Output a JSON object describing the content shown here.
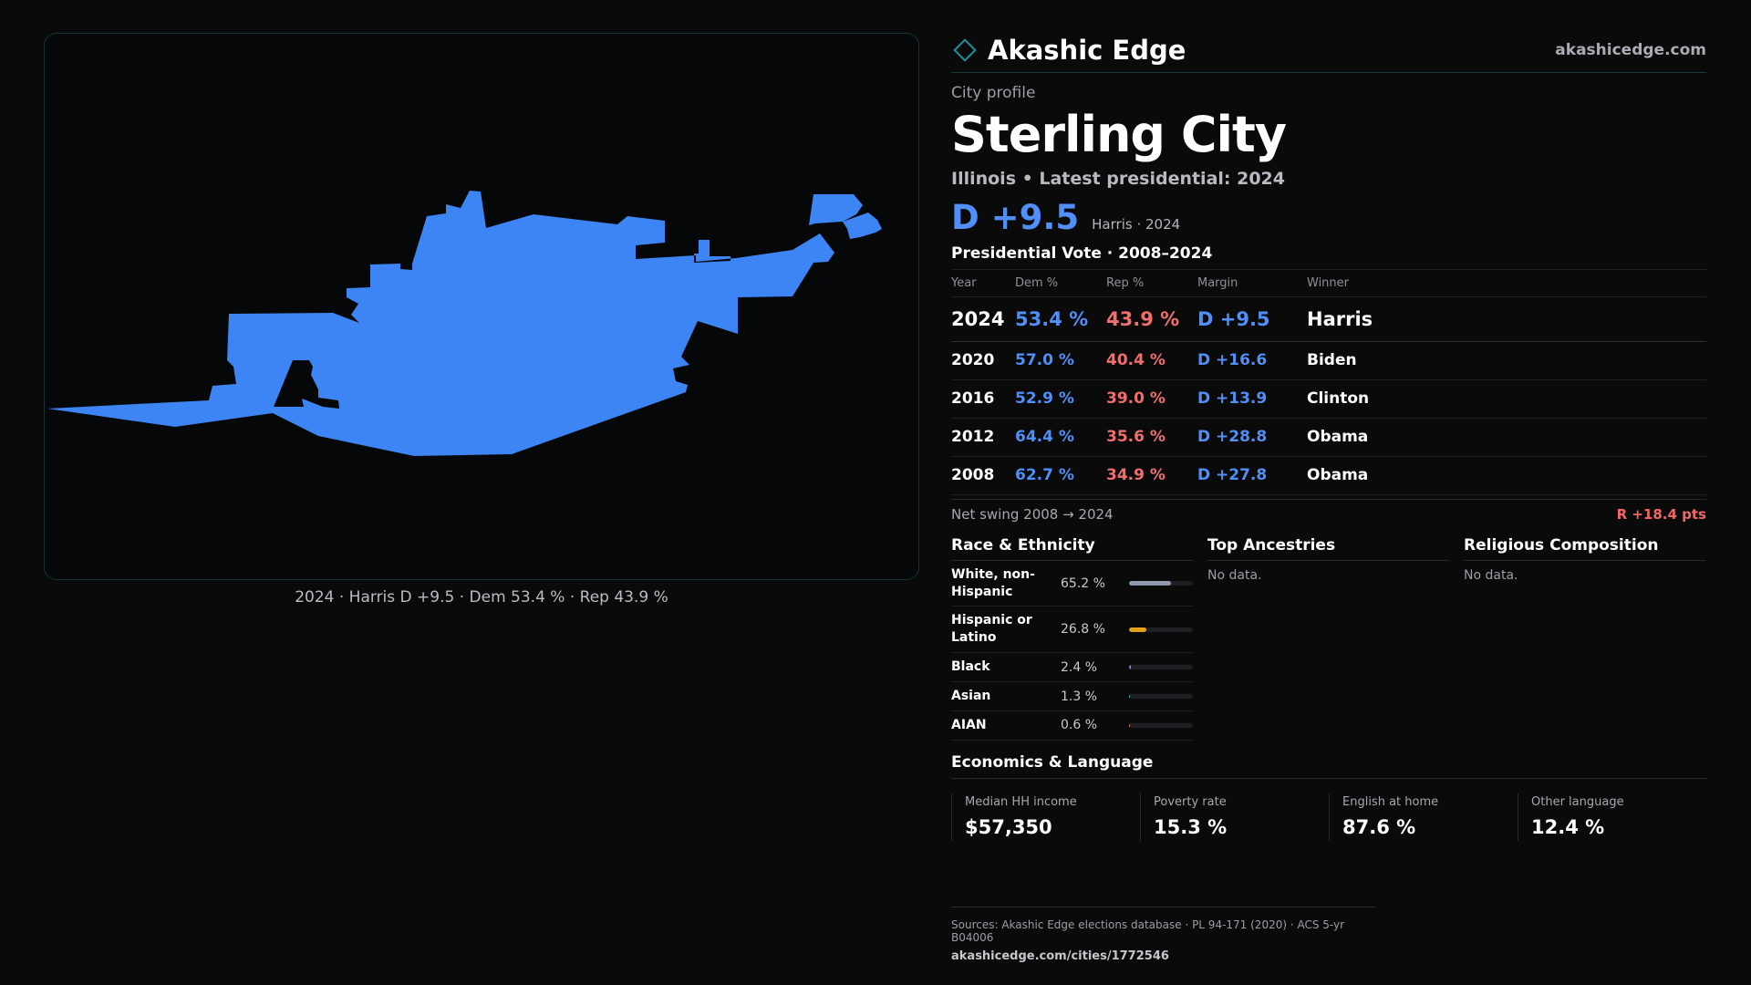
{
  "brand": {
    "name": "Akashic Edge",
    "url": "akashicedge.com",
    "accent": "#1e8f96"
  },
  "profile": {
    "kicker": "City profile",
    "city": "Sterling City",
    "subtitle": "Illinois • Latest presidential: 2024",
    "margin": "D +9.5",
    "margin_note": "Harris · 2024"
  },
  "map": {
    "caption": "2024 · Harris D +9.5 · Dem 53.4 % · Rep 43.9 %",
    "fill_color": "#3d85f4",
    "icon": "city-boundary-map"
  },
  "presidential": {
    "title": "Presidential Vote · 2008–2024",
    "headers": {
      "year": "Year",
      "dem": "Dem %",
      "rep": "Rep %",
      "margin": "Margin",
      "winner": "Winner"
    },
    "rows": [
      {
        "year": "2024",
        "dem": "53.4 %",
        "rep": "43.9 %",
        "margin": "D +9.5",
        "winner": "Harris"
      },
      {
        "year": "2020",
        "dem": "57.0 %",
        "rep": "40.4 %",
        "margin": "D +16.6",
        "winner": "Biden"
      },
      {
        "year": "2016",
        "dem": "52.9 %",
        "rep": "39.0 %",
        "margin": "D +13.9",
        "winner": "Clinton"
      },
      {
        "year": "2012",
        "dem": "64.4 %",
        "rep": "35.6 %",
        "margin": "D +28.8",
        "winner": "Obama"
      },
      {
        "year": "2008",
        "dem": "62.7 %",
        "rep": "34.9 %",
        "margin": "D +27.8",
        "winner": "Obama"
      }
    ],
    "swing_label": "Net swing 2008 → 2024",
    "swing_value": "R +18.4 pts"
  },
  "race": {
    "title": "Race & Ethnicity",
    "items": [
      {
        "label": "White, non-Hispanic",
        "value": "65.2 %",
        "pct": 65.2,
        "color": "#8f98ad"
      },
      {
        "label": "Hispanic or Latino",
        "value": "26.8 %",
        "pct": 26.8,
        "color": "#e3a11b"
      },
      {
        "label": "Black",
        "value": "2.4 %",
        "pct": 2.4,
        "color": "#8f7ae0"
      },
      {
        "label": "Asian",
        "value": "1.3 %",
        "pct": 1.3,
        "color": "#3fb3a6"
      },
      {
        "label": "AIAN",
        "value": "0.6 %",
        "pct": 0.6,
        "color": "#d9783a"
      }
    ]
  },
  "ancestries": {
    "title": "Top Ancestries",
    "empty": "No data."
  },
  "religion": {
    "title": "Religious Composition",
    "empty": "No data."
  },
  "economics": {
    "title": "Economics & Language",
    "stats": [
      {
        "label": "Median HH income",
        "value": "$57,350"
      },
      {
        "label": "Poverty rate",
        "value": "15.3 %"
      },
      {
        "label": "English at home",
        "value": "87.6 %"
      },
      {
        "label": "Other language",
        "value": "12.4 %"
      }
    ]
  },
  "footer": {
    "sources": "Sources: Akashic Edge elections database · PL 94-171 (2020) · ACS 5-yr B04006",
    "url": "akashicedge.com/cities/1772546"
  }
}
